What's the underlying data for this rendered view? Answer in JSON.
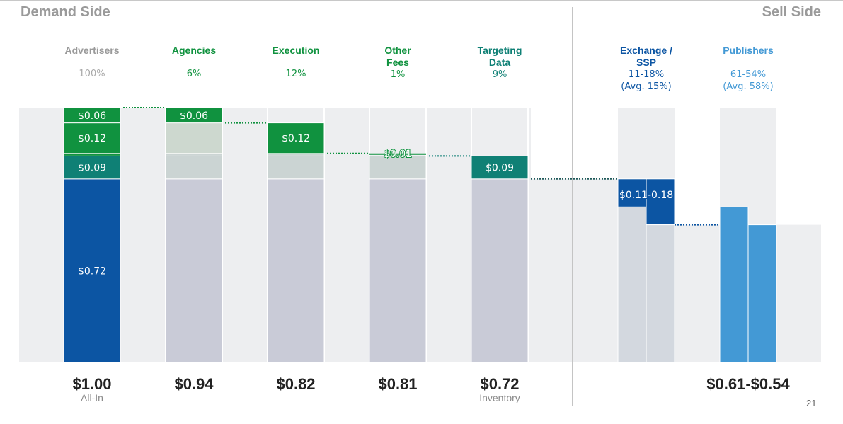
{
  "page": {
    "demand_title": "Demand Side",
    "sell_title": "Sell Side",
    "page_number": "21"
  },
  "colors": {
    "gray_head": "#9a9a9a",
    "green": "#10923f",
    "teal": "#0f8075",
    "dark_blue": "#0c55a3",
    "light_blue": "#4399d5",
    "band": "#edeef0",
    "inventory_gray": "#c9cbd7",
    "faded_green": "#cdd8cf",
    "faded_teal": "#cbd4d3",
    "ssp_gray": "#d3d8df"
  },
  "columns": [
    {
      "name": "Advertisers",
      "pct": "100%",
      "color": "#9a9a9a",
      "bottom_value": "$1.00",
      "bottom_sub": "All-In"
    },
    {
      "name": "Agencies",
      "pct": "6%",
      "color": "#10923f",
      "bottom_value": "$0.94",
      "bottom_sub": ""
    },
    {
      "name": "Execution",
      "pct": "12%",
      "color": "#10923f",
      "bottom_value": "$0.82",
      "bottom_sub": ""
    },
    {
      "name": "Other\nFees",
      "pct": "1%",
      "color": "#10923f",
      "bottom_value": "$0.81",
      "bottom_sub": ""
    },
    {
      "name": "Targeting\nData",
      "pct": "9%",
      "color": "#0f8075",
      "bottom_value": "$0.72",
      "bottom_sub": "Inventory"
    },
    {
      "name": "Exchange /\nSSP",
      "pct": "11-18%\n(Avg. 15%)",
      "color": "#0c55a3",
      "bottom_value": "",
      "bottom_sub": ""
    },
    {
      "name": "Publishers",
      "pct": "\n61-54%\n(Avg. 58%)",
      "color": "#4399d5",
      "bottom_value": "$0.61-$0.54",
      "bottom_sub": ""
    }
  ],
  "chart_data": {
    "type": "bar",
    "subtype": "waterfall",
    "title": "",
    "groups": [
      "Demand Side",
      "Sell Side"
    ],
    "categories": [
      "Advertisers",
      "Agencies",
      "Execution",
      "Other Fees",
      "Targeting Data",
      "Exchange / SSP",
      "Publishers"
    ],
    "unit": "USD per $1.00 of ad spend",
    "ylim": [
      0,
      1.0
    ],
    "advertiser_stack": [
      {
        "label": "$0.72",
        "value": 0.72,
        "segment": "Inventory"
      },
      {
        "label": "$0.09",
        "value": 0.09,
        "segment": "Targeting Data"
      },
      {
        "label": "$0.01",
        "value": 0.01,
        "segment": "Other Fees"
      },
      {
        "label": "$0.12",
        "value": 0.12,
        "segment": "Execution"
      },
      {
        "label": "$0.06",
        "value": 0.06,
        "segment": "Agencies"
      }
    ],
    "steps": [
      {
        "category": "Agencies",
        "fee": 0.06,
        "fee_label": "$0.06",
        "remaining": 0.94
      },
      {
        "category": "Execution",
        "fee": 0.12,
        "fee_label": "$0.12",
        "remaining": 0.82
      },
      {
        "category": "Other Fees",
        "fee": 0.01,
        "fee_label": "$0.01",
        "remaining": 0.81
      },
      {
        "category": "Targeting Data",
        "fee": 0.09,
        "fee_label": "$0.09",
        "remaining": 0.72
      },
      {
        "category": "Exchange / SSP",
        "fee_range": [
          0.11,
          0.18
        ],
        "fee_label": "$0.11-0.18",
        "remaining_range": [
          0.61,
          0.54
        ]
      },
      {
        "category": "Publishers",
        "value_range": [
          0.61,
          0.54
        ],
        "label": "$0.61-$0.54"
      }
    ],
    "percent_labels": [
      "100%",
      "6%",
      "12%",
      "1%",
      "9%",
      "11-18% (Avg. 15%)",
      "61-54% (Avg. 58%)"
    ],
    "bottom_labels": [
      "$1.00 All-In",
      "$0.94",
      "$0.82",
      "$0.81",
      "$0.72 Inventory",
      "",
      "$0.61-$0.54"
    ]
  }
}
